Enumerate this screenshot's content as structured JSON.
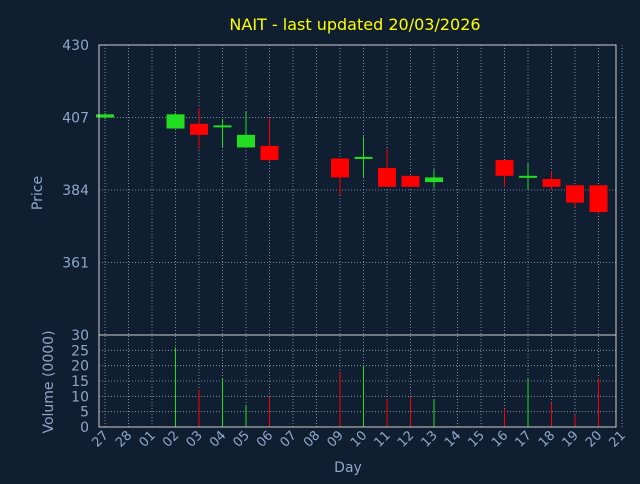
{
  "chart_data": {
    "type": "candlestick",
    "title": "NAIT - last updated 20/03/2026",
    "ylabel": "Price",
    "volume_ylabel": "Volume (0000)",
    "xlabel": "Day",
    "x_ticks": [
      "27",
      "28",
      "01",
      "02",
      "03",
      "04",
      "05",
      "06",
      "07",
      "08",
      "09",
      "10",
      "11",
      "12",
      "13",
      "14",
      "15",
      "16",
      "17",
      "18",
      "19",
      "20",
      "21"
    ],
    "price_axis": {
      "ylim": [
        338,
        430
      ],
      "ticks": [
        361,
        384,
        407,
        430
      ]
    },
    "volume_axis": {
      "ylim": [
        0,
        30
      ],
      "ticks": [
        0,
        5,
        10,
        15,
        20,
        25,
        30
      ]
    },
    "grid": true,
    "colors": {
      "up": "#22dd22",
      "down": "#ff0000",
      "title": "#ffff00",
      "axis_text": "#8fa8c8",
      "frame": "#cfcfcf",
      "background": "#0f1e30"
    },
    "candles": [
      {
        "day": "27",
        "open": 407.0,
        "high": 408.5,
        "low": 406.5,
        "close": 408.0,
        "volume": 0
      },
      {
        "day": "02",
        "open": 403.5,
        "high": 408.5,
        "low": 403.5,
        "close": 408.0,
        "volume": 26
      },
      {
        "day": "03",
        "open": 405.0,
        "high": 410.0,
        "low": 397.0,
        "close": 401.5,
        "volume": 12
      },
      {
        "day": "04",
        "open": 404.0,
        "high": 406.5,
        "low": 397.5,
        "close": 404.5,
        "volume": 16
      },
      {
        "day": "05",
        "open": 397.5,
        "high": 409.0,
        "low": 397.5,
        "close": 401.5,
        "volume": 7
      },
      {
        "day": "06",
        "open": 398.0,
        "high": 407.0,
        "low": 393.0,
        "close": 393.5,
        "volume": 10
      },
      {
        "day": "09",
        "open": 394.0,
        "high": 394.0,
        "low": 382.5,
        "close": 388.0,
        "volume": 18
      },
      {
        "day": "10",
        "open": 394.5,
        "high": 401.0,
        "low": 388.0,
        "close": 394.5,
        "volume": 20
      },
      {
        "day": "11",
        "open": 391.0,
        "high": 397.0,
        "low": 385.0,
        "close": 385.0,
        "volume": 9
      },
      {
        "day": "12",
        "open": 388.5,
        "high": 388.5,
        "low": 385.0,
        "close": 385.0,
        "volume": 10
      },
      {
        "day": "13",
        "open": 386.5,
        "high": 390.5,
        "low": 384.5,
        "close": 388.0,
        "volume": 9
      },
      {
        "day": "16",
        "open": 393.5,
        "high": 393.5,
        "low": 385.0,
        "close": 388.5,
        "volume": 6
      },
      {
        "day": "17",
        "open": 388.0,
        "high": 392.5,
        "low": 384.0,
        "close": 388.5,
        "volume": 16
      },
      {
        "day": "18",
        "open": 387.5,
        "high": 390.0,
        "low": 384.0,
        "close": 385.0,
        "volume": 8
      },
      {
        "day": "19",
        "open": 385.5,
        "high": 385.5,
        "low": 378.5,
        "close": 380.0,
        "volume": 4
      },
      {
        "day": "20",
        "open": 385.5,
        "high": 385.5,
        "low": 376.5,
        "close": 377.0,
        "volume": 16
      }
    ]
  }
}
